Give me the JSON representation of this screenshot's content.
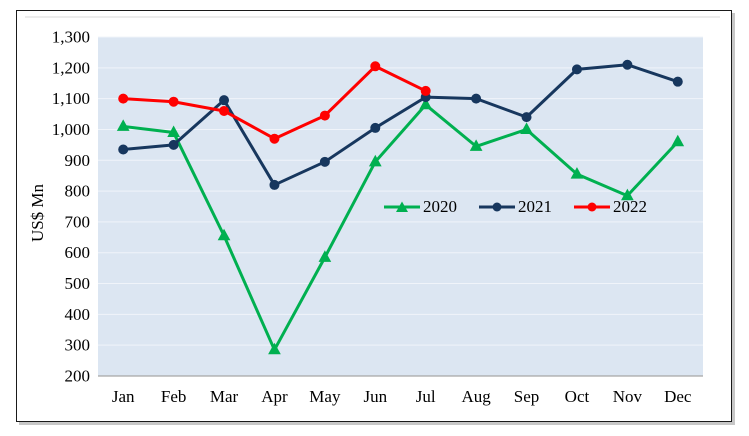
{
  "figure": {
    "background": "#ffffff",
    "frame_border_color": "#1a1a1a",
    "top_rule_color": "#d9d9d9"
  },
  "chart_data": {
    "type": "line",
    "title": "",
    "xlabel": "",
    "ylabel": "US$ Mn",
    "categories": [
      "Jan",
      "Feb",
      "Mar",
      "Apr",
      "May",
      "Jun",
      "Jul",
      "Aug",
      "Sep",
      "Oct",
      "Nov",
      "Dec"
    ],
    "y_axis": {
      "min": 200,
      "max": 1300,
      "step": 100,
      "tick_labels": [
        "200",
        "300",
        "400",
        "500",
        "600",
        "700",
        "800",
        "900",
        "1,000",
        "1,100",
        "1,200",
        "1,300"
      ]
    },
    "grid": true,
    "plot_bg": "#dce6f2",
    "gridline_color": "#f0f4fa",
    "axis_line_color": "#a6a6a6",
    "legend_position": "inside-center-right",
    "series": [
      {
        "name": "2020",
        "color": "#00b050",
        "marker": "triangle",
        "values": [
          1010,
          990,
          655,
          285,
          585,
          895,
          1080,
          945,
          1000,
          855,
          785,
          960
        ]
      },
      {
        "name": "2021",
        "color": "#17375e",
        "marker": "circle",
        "values": [
          935,
          950,
          1095,
          820,
          895,
          1005,
          1105,
          1100,
          1040,
          1195,
          1210,
          1155
        ]
      },
      {
        "name": "2022",
        "color": "#ff0000",
        "marker": "circle",
        "values": [
          1100,
          1090,
          1060,
          970,
          1045,
          1205,
          1125
        ]
      }
    ]
  }
}
